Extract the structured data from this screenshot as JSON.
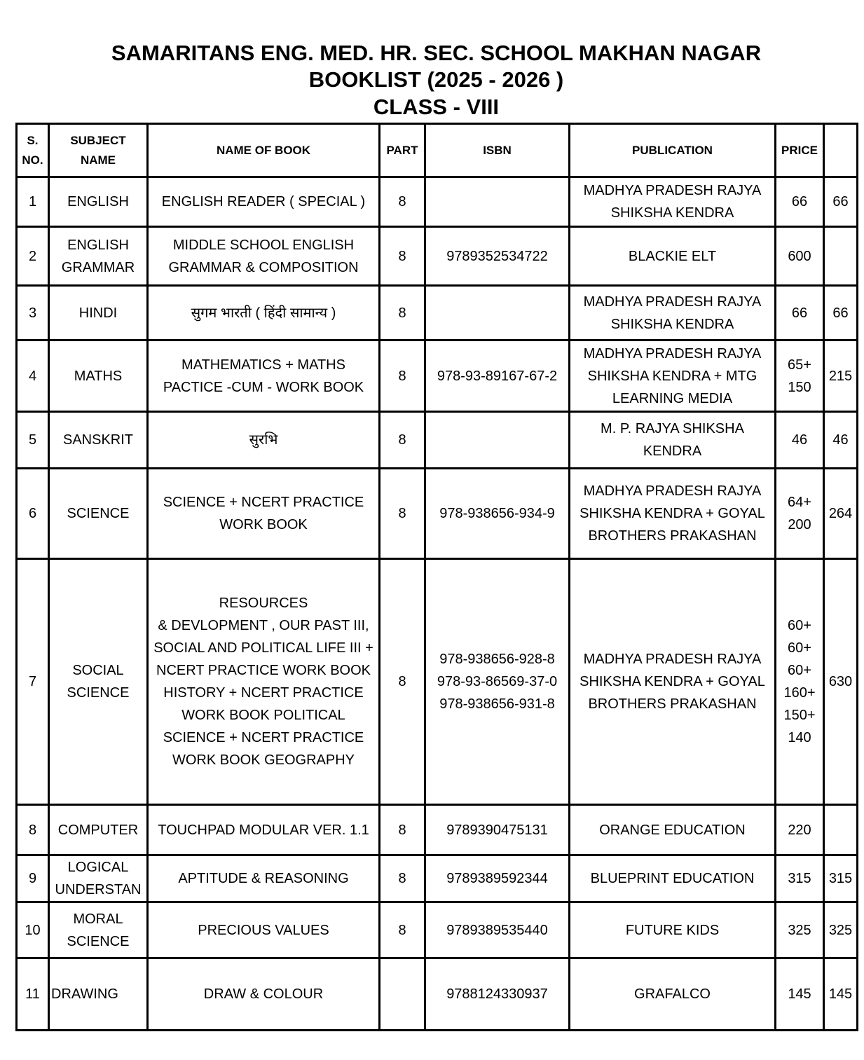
{
  "header": {
    "school": "SAMARITANS ENG. MED. HR. SEC. SCHOOL MAKHAN NAGAR",
    "booklist": "BOOKLIST (2025 - 2026 )",
    "class": "CLASS - VIII"
  },
  "columns": [
    "S.\nNO.",
    "SUBJECT\nNAME",
    "NAME OF BOOK",
    "PART",
    "ISBN",
    "PUBLICATION",
    "PRICE",
    ""
  ],
  "rows": [
    {
      "sno": "1",
      "subject": "ENGLISH",
      "book": "ENGLISH READER ( SPECIAL )",
      "part": "8",
      "isbn": "",
      "publication": "MADHYA PRADESH RAJYA\nSHIKSHA KENDRA",
      "price": "66",
      "total": "66"
    },
    {
      "sno": "2",
      "subject": "ENGLISH\nGRAMMAR",
      "book": "MIDDLE SCHOOL ENGLISH\nGRAMMAR & COMPOSITION",
      "part": "8",
      "isbn": "9789352534722",
      "publication": "BLACKIE ELT",
      "price": "600",
      "total": ""
    },
    {
      "sno": "3",
      "subject": "HINDI",
      "book": "सुगम भारती ( हिंदी सामान्य )",
      "part": "8",
      "isbn": "",
      "publication": "MADHYA PRADESH RAJYA\nSHIKSHA KENDRA",
      "price": "66",
      "total": "66"
    },
    {
      "sno": "4",
      "subject": "MATHS",
      "book": "MATHEMATICS + MATHS\nPACTICE -CUM - WORK BOOK",
      "part": "8",
      "isbn": "978-93-89167-67-2",
      "publication": "MADHYA PRADESH RAJYA\nSHIKSHA KENDRA + MTG\nLEARNING MEDIA",
      "price": "65+\n150",
      "total": "215"
    },
    {
      "sno": "5",
      "subject": "SANSKRIT",
      "book": "सुरभि",
      "part": "8",
      "isbn": "",
      "publication": "M. P. RAJYA SHIKSHA\nKENDRA",
      "price": "46",
      "total": "46"
    },
    {
      "sno": "6",
      "subject": "SCIENCE",
      "book": "SCIENCE + NCERT PRACTICE\nWORK BOOK",
      "part": "8",
      "isbn": "978-938656-934-9",
      "publication": "MADHYA PRADESH RAJYA\nSHIKSHA KENDRA + GOYAL\nBROTHERS PRAKASHAN",
      "price": "64+\n200",
      "total": "264"
    },
    {
      "sno": "7",
      "subject": "SOCIAL\nSCIENCE",
      "book": "RESOURCES\n& DEVLOPMENT , OUR PAST III,\nSOCIAL AND POLITICAL LIFE III +\nNCERT PRACTICE WORK BOOK\nHISTORY + NCERT PRACTICE\nWORK BOOK POLITICAL\nSCIENCE + NCERT PRACTICE\nWORK BOOK GEOGRAPHY",
      "part": "8",
      "isbn": "978-938656-928-8\n978-93-86569-37-0\n978-938656-931-8",
      "publication": "MADHYA PRADESH RAJYA\nSHIKSHA KENDRA + GOYAL\nBROTHERS PRAKASHAN",
      "price": "60+\n60+\n60+\n160+\n150+\n140",
      "total": "630"
    },
    {
      "sno": "8",
      "subject": "COMPUTER",
      "book": "TOUCHPAD MODULAR VER. 1.1",
      "part": "8",
      "isbn": "9789390475131",
      "publication": "ORANGE EDUCATION",
      "price": "220",
      "total": ""
    },
    {
      "sno": "9",
      "subject": "LOGICAL\nUNDERSTAN",
      "book": "APTITUDE & REASONING",
      "part": "8",
      "isbn": "9789389592344",
      "publication": "BLUEPRINT EDUCATION",
      "price": "315",
      "total": "315"
    },
    {
      "sno": "10",
      "subject": "MORAL\nSCIENCE",
      "book": "PRECIOUS VALUES",
      "part": "8",
      "isbn": "9789389535440",
      "publication": "FUTURE KIDS",
      "price": "325",
      "total": "325"
    },
    {
      "sno": "11",
      "subject": "DRAWING",
      "book": "DRAW & COLOUR",
      "part": "",
      "isbn": "9788124330937",
      "publication": "GRAFALCO",
      "price": "145",
      "total": "145"
    }
  ]
}
